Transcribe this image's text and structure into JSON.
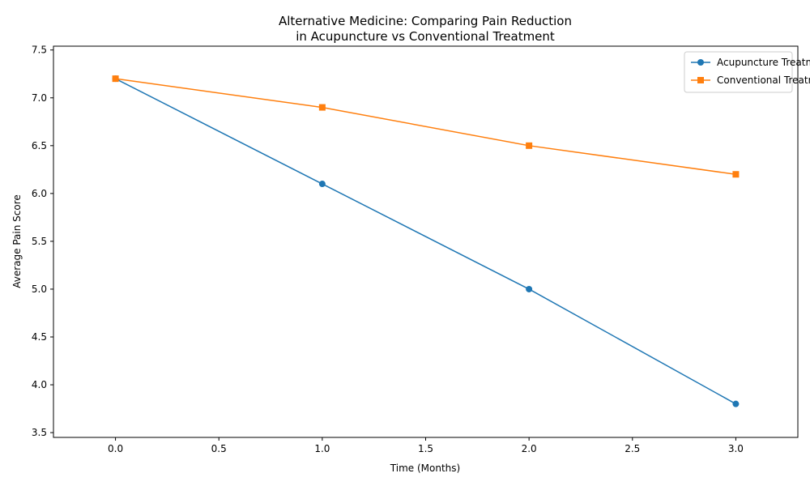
{
  "chart_data": {
    "type": "line",
    "title_lines": [
      "Alternative Medicine: Comparing Pain Reduction",
      "in Acupuncture vs Conventional Treatment"
    ],
    "xlabel": "Time (Months)",
    "ylabel": "Average Pain Score",
    "xlim": [
      -0.3,
      3.3
    ],
    "ylim": [
      3.45,
      7.54
    ],
    "x_ticks": [
      0.0,
      0.5,
      1.0,
      1.5,
      2.0,
      2.5,
      3.0
    ],
    "x_tick_labels": [
      "0.0",
      "0.5",
      "1.0",
      "1.5",
      "2.0",
      "2.5",
      "3.0"
    ],
    "y_ticks": [
      3.5,
      4.0,
      4.5,
      5.0,
      5.5,
      6.0,
      6.5,
      7.0,
      7.5
    ],
    "y_tick_labels": [
      "3.5",
      "4.0",
      "4.5",
      "5.0",
      "5.5",
      "6.0",
      "6.5",
      "7.0",
      "7.5"
    ],
    "grid": false,
    "legend_position": "top-right",
    "x": [
      0,
      1,
      2,
      3
    ],
    "series": [
      {
        "name": "Acupuncture Treatment",
        "values": [
          7.2,
          6.1,
          5.0,
          3.8
        ],
        "color": "#1f77b4",
        "marker": "circle"
      },
      {
        "name": "Conventional Treatment",
        "values": [
          7.2,
          6.9,
          6.5,
          6.2
        ],
        "color": "#ff7f0e",
        "marker": "square"
      }
    ]
  }
}
